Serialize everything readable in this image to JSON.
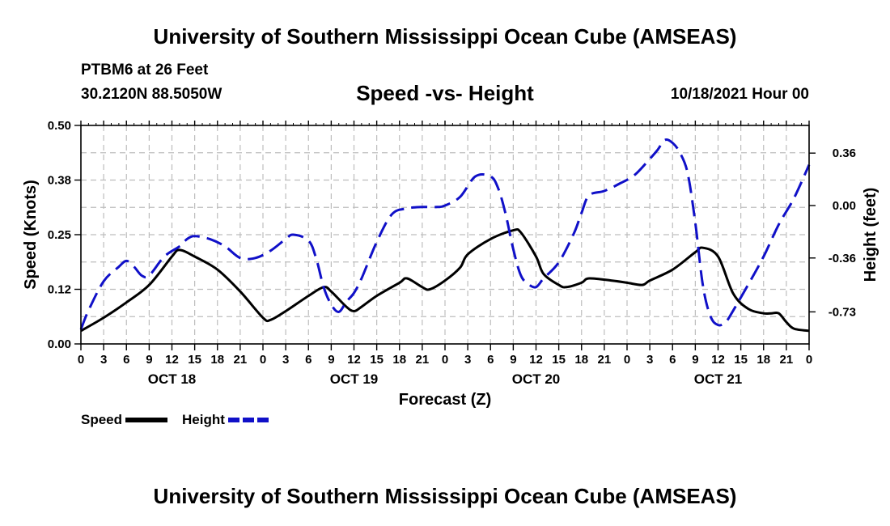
{
  "header": {
    "title": "University of Southern Mississippi Ocean Cube (AMSEAS)",
    "station": "PTBM6 at 26 Feet",
    "location": "30.2120N  88.5050W",
    "chart_subtitle": "Speed -vs- Height",
    "datetime": "10/18/2021 Hour 00",
    "footer_title": "University of Southern Mississippi Ocean Cube (AMSEAS)"
  },
  "legend": {
    "speed_label": "Speed",
    "height_label": "Height"
  },
  "colors": {
    "speed": "#000000",
    "height": "#1010c8",
    "grid": "#bdbdbd"
  },
  "chart_data": {
    "type": "line",
    "title": "Speed -vs- Height",
    "xlabel": "Forecast (Z)",
    "ylabel": "Speed (Knots)",
    "y2label": "Height (feet)",
    "x_unit": "hours since 10/18/2021 00Z",
    "xlim": [
      0,
      96
    ],
    "ylim": [
      0,
      0.5
    ],
    "y2lim": [
      -0.95,
      0.55
    ],
    "x_ticks": [
      0,
      3,
      6,
      9,
      12,
      15,
      18,
      21,
      24,
      27,
      30,
      33,
      36,
      39,
      42,
      45,
      48,
      51,
      54,
      57,
      60,
      63,
      66,
      69,
      72,
      75,
      78,
      81,
      84,
      87,
      90,
      93,
      96
    ],
    "x_tick_labels": [
      "0",
      "3",
      "6",
      "9",
      "12",
      "15",
      "18",
      "21",
      "0",
      "3",
      "6",
      "9",
      "12",
      "15",
      "18",
      "21",
      "0",
      "3",
      "6",
      "9",
      "12",
      "15",
      "18",
      "21",
      "0",
      "3",
      "6",
      "9",
      "12",
      "15",
      "18",
      "21",
      "0"
    ],
    "day_labels": [
      {
        "x": 12,
        "label": "OCT 18"
      },
      {
        "x": 36,
        "label": "OCT 19"
      },
      {
        "x": 60,
        "label": "OCT 20"
      },
      {
        "x": 84,
        "label": "OCT 21"
      }
    ],
    "y_ticks": [
      0.0,
      0.125,
      0.25,
      0.375,
      0.5
    ],
    "y_tick_labels": [
      "0.00",
      "0.12",
      "0.25",
      "0.38",
      "0.50"
    ],
    "y2_ticks": [
      0.36,
      0.0,
      -0.36,
      -0.73
    ],
    "y2_tick_labels": [
      "0.36",
      "0.00",
      "-0.36",
      "-0.73"
    ],
    "series": [
      {
        "name": "Speed",
        "axis": "left",
        "style": "solid",
        "points": [
          [
            0,
            0.03
          ],
          [
            3,
            0.06
          ],
          [
            6,
            0.095
          ],
          [
            9,
            0.135
          ],
          [
            12,
            0.2
          ],
          [
            13,
            0.215
          ],
          [
            15,
            0.2
          ],
          [
            18,
            0.17
          ],
          [
            21,
            0.12
          ],
          [
            24,
            0.06
          ],
          [
            25,
            0.055
          ],
          [
            27,
            0.075
          ],
          [
            30,
            0.11
          ],
          [
            32,
            0.13
          ],
          [
            33,
            0.12
          ],
          [
            35,
            0.085
          ],
          [
            36,
            0.075
          ],
          [
            37,
            0.085
          ],
          [
            39,
            0.11
          ],
          [
            42,
            0.14
          ],
          [
            43,
            0.15
          ],
          [
            45,
            0.13
          ],
          [
            46,
            0.125
          ],
          [
            48,
            0.145
          ],
          [
            50,
            0.175
          ],
          [
            51,
            0.205
          ],
          [
            54,
            0.24
          ],
          [
            57,
            0.26
          ],
          [
            58,
            0.255
          ],
          [
            60,
            0.2
          ],
          [
            61,
            0.16
          ],
          [
            63,
            0.135
          ],
          [
            64,
            0.13
          ],
          [
            66,
            0.14
          ],
          [
            67,
            0.15
          ],
          [
            70,
            0.145
          ],
          [
            72,
            0.14
          ],
          [
            74,
            0.135
          ],
          [
            75,
            0.145
          ],
          [
            78,
            0.17
          ],
          [
            81,
            0.21
          ],
          [
            82,
            0.22
          ],
          [
            84,
            0.2
          ],
          [
            86,
            0.115
          ],
          [
            88,
            0.08
          ],
          [
            90,
            0.07
          ],
          [
            91,
            0.07
          ],
          [
            92,
            0.07
          ],
          [
            93,
            0.05
          ],
          [
            94,
            0.035
          ],
          [
            96,
            0.03
          ]
        ]
      },
      {
        "name": "Height",
        "axis": "right",
        "style": "dashed",
        "points": [
          [
            0,
            -0.85
          ],
          [
            1,
            -0.72
          ],
          [
            3,
            -0.52
          ],
          [
            5,
            -0.42
          ],
          [
            6,
            -0.38
          ],
          [
            7,
            -0.42
          ],
          [
            8,
            -0.48
          ],
          [
            9,
            -0.48
          ],
          [
            11,
            -0.35
          ],
          [
            13,
            -0.28
          ],
          [
            14,
            -0.23
          ],
          [
            15,
            -0.21
          ],
          [
            17,
            -0.23
          ],
          [
            19,
            -0.28
          ],
          [
            21,
            -0.36
          ],
          [
            23,
            -0.36
          ],
          [
            25,
            -0.31
          ],
          [
            27,
            -0.23
          ],
          [
            28,
            -0.2
          ],
          [
            30,
            -0.24
          ],
          [
            31,
            -0.36
          ],
          [
            32,
            -0.56
          ],
          [
            33,
            -0.68
          ],
          [
            34,
            -0.73
          ],
          [
            35,
            -0.66
          ],
          [
            36,
            -0.6
          ],
          [
            37,
            -0.5
          ],
          [
            39,
            -0.25
          ],
          [
            41,
            -0.06
          ],
          [
            43,
            -0.02
          ],
          [
            45,
            -0.01
          ],
          [
            47,
            -0.01
          ],
          [
            48,
            0.0
          ],
          [
            50,
            0.06
          ],
          [
            52,
            0.2
          ],
          [
            54,
            0.2
          ],
          [
            55,
            0.12
          ],
          [
            56,
            -0.06
          ],
          [
            57,
            -0.3
          ],
          [
            58,
            -0.48
          ],
          [
            59,
            -0.54
          ],
          [
            60,
            -0.56
          ],
          [
            61,
            -0.5
          ],
          [
            63,
            -0.39
          ],
          [
            65,
            -0.19
          ],
          [
            66,
            -0.05
          ],
          [
            67,
            0.07
          ],
          [
            69,
            0.1
          ],
          [
            71,
            0.15
          ],
          [
            73,
            0.21
          ],
          [
            75,
            0.32
          ],
          [
            76,
            0.38
          ],
          [
            77,
            0.45
          ],
          [
            78,
            0.43
          ],
          [
            79,
            0.36
          ],
          [
            80,
            0.22
          ],
          [
            81,
            -0.12
          ],
          [
            82,
            -0.55
          ],
          [
            83,
            -0.76
          ],
          [
            84,
            -0.82
          ],
          [
            85,
            -0.8
          ],
          [
            86,
            -0.72
          ],
          [
            88,
            -0.54
          ],
          [
            90,
            -0.35
          ],
          [
            92,
            -0.13
          ],
          [
            94,
            0.05
          ],
          [
            96,
            0.28
          ]
        ]
      }
    ]
  }
}
